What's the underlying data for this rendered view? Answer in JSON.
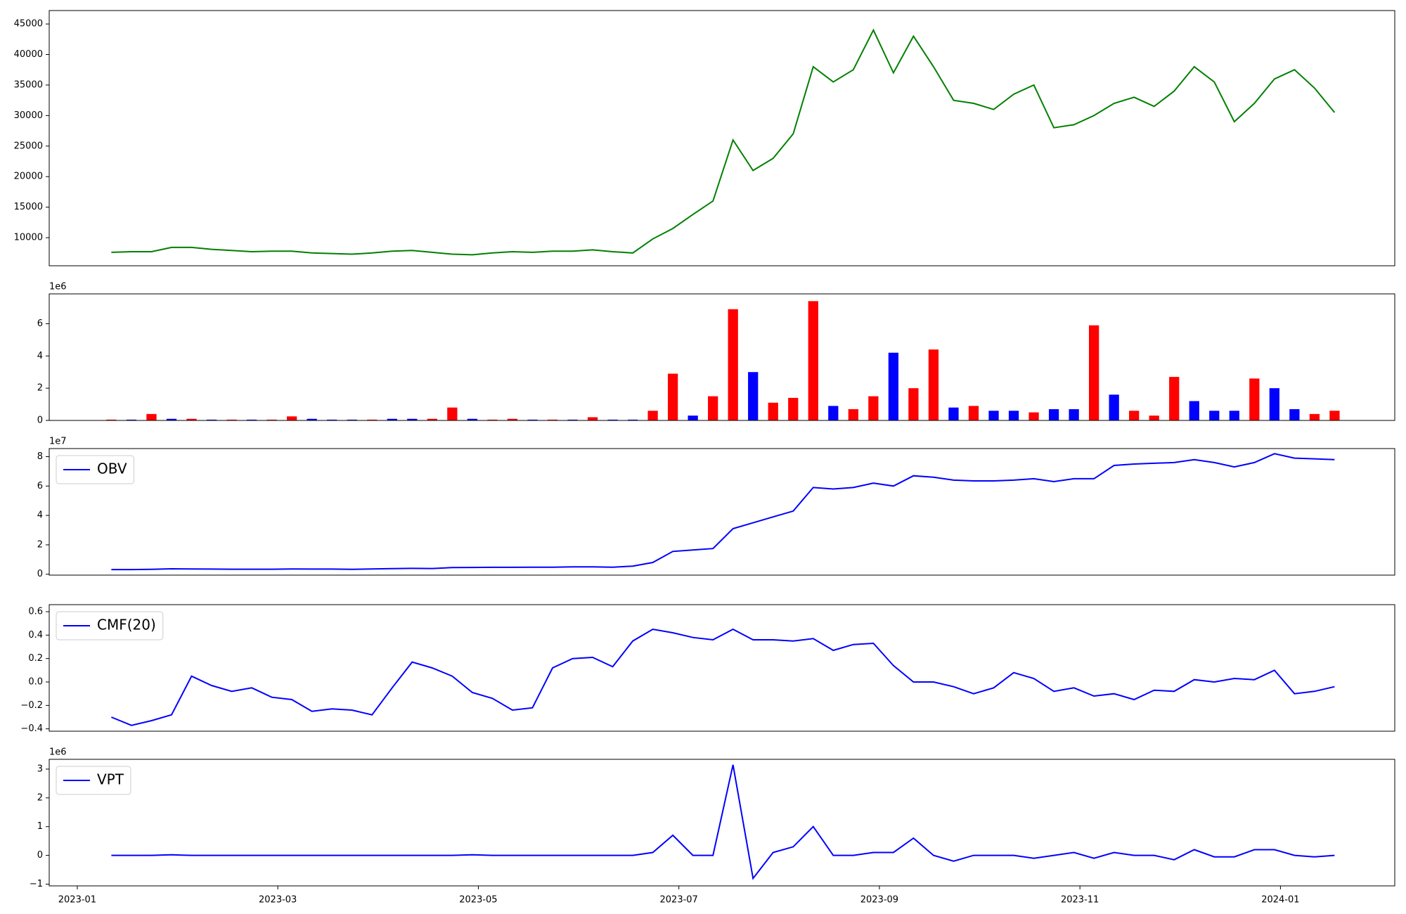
{
  "chart_data": [
    {
      "type": "line",
      "color": "green",
      "x": [
        0.34,
        0.54,
        0.74,
        0.94,
        1.14,
        1.34,
        1.54,
        1.74,
        1.94,
        2.14,
        2.34,
        2.54,
        2.74,
        2.94,
        3.14,
        3.34,
        3.54,
        3.74,
        3.94,
        4.14,
        4.34,
        4.54,
        4.74,
        4.94,
        5.14,
        5.34,
        5.54,
        5.74,
        5.94,
        6.14,
        6.34,
        6.54,
        6.74,
        6.94,
        7.14,
        7.34,
        7.54,
        7.74,
        7.94,
        8.14,
        8.34,
        8.54,
        8.74,
        8.94,
        9.14,
        9.34,
        9.54,
        9.74,
        9.94,
        10.14,
        10.34,
        10.54,
        10.74,
        10.94,
        11.14,
        11.34,
        11.54,
        11.74,
        11.94,
        12.14,
        12.34,
        12.54
      ],
      "values": [
        7600,
        7700,
        7700,
        8400,
        8400,
        8100,
        7900,
        7700,
        7800,
        7800,
        7500,
        7400,
        7300,
        7500,
        7800,
        7900,
        7600,
        7300,
        7200,
        7500,
        7700,
        7600,
        7800,
        7800,
        8000,
        7700,
        7500,
        9800,
        11500,
        13800,
        16000,
        26000,
        21000,
        23000,
        27000,
        38000,
        35500,
        37500,
        44000,
        37000,
        43000,
        38000,
        32500,
        32000,
        31000,
        33500,
        35000,
        28000,
        28500,
        30000,
        32000,
        33000,
        31500,
        34000,
        38000,
        35500,
        29000,
        32000,
        36000,
        37500,
        34500,
        30500
      ],
      "xlim": [
        -0.28,
        13.14
      ],
      "ylim": [
        5400,
        47200
      ],
      "yticks": [
        10000,
        15000,
        20000,
        25000,
        30000,
        35000,
        40000,
        45000
      ]
    },
    {
      "type": "bar",
      "offset_label": "1e6",
      "x": [
        0.34,
        0.54,
        0.74,
        0.94,
        1.14,
        1.34,
        1.54,
        1.74,
        1.94,
        2.14,
        2.34,
        2.54,
        2.74,
        2.94,
        3.14,
        3.34,
        3.54,
        3.74,
        3.94,
        4.14,
        4.34,
        4.54,
        4.74,
        4.94,
        5.14,
        5.34,
        5.54,
        5.74,
        5.94,
        6.14,
        6.34,
        6.54,
        6.74,
        6.94,
        7.14,
        7.34,
        7.54,
        7.74,
        7.94,
        8.14,
        8.34,
        8.54,
        8.74,
        8.94,
        9.14,
        9.34,
        9.54,
        9.74,
        9.94,
        10.14,
        10.34,
        10.54,
        10.74,
        10.94,
        11.14,
        11.34,
        11.54,
        11.74,
        11.94,
        12.14,
        12.34,
        12.54
      ],
      "values": [
        50000,
        50000,
        400000,
        100000,
        100000,
        50000,
        50000,
        50000,
        50000,
        250000,
        100000,
        50000,
        50000,
        50000,
        100000,
        100000,
        100000,
        800000,
        100000,
        50000,
        100000,
        50000,
        50000,
        50000,
        200000,
        50000,
        50000,
        600000,
        2900000,
        300000,
        1500000,
        6900000,
        3000000,
        1100000,
        1400000,
        7400000,
        900000,
        700000,
        1500000,
        4200000,
        2000000,
        4400000,
        800000,
        900000,
        600000,
        600000,
        500000,
        700000,
        700000,
        5900000,
        1600000,
        600000,
        300000,
        2700000,
        1200000,
        600000,
        600000,
        2600000,
        2000000,
        700000,
        400000,
        600000
      ],
      "colors": [
        "red",
        "blue",
        "red",
        "blue",
        "red",
        "blue",
        "red",
        "blue",
        "red",
        "red",
        "blue",
        "blue",
        "blue",
        "red",
        "blue",
        "blue",
        "red",
        "red",
        "blue",
        "red",
        "red",
        "blue",
        "red",
        "blue",
        "red",
        "blue",
        "blue",
        "red",
        "red",
        "blue",
        "red",
        "red",
        "blue",
        "red",
        "red",
        "red",
        "blue",
        "red",
        "red",
        "blue",
        "red",
        "red",
        "blue",
        "red",
        "blue",
        "blue",
        "red",
        "blue",
        "blue",
        "red",
        "blue",
        "red",
        "red",
        "red",
        "blue",
        "blue",
        "blue",
        "red",
        "blue",
        "blue",
        "red",
        "red"
      ],
      "xlim": [
        -0.28,
        13.14
      ],
      "ylim": [
        0,
        7850000
      ],
      "yticks": [
        0,
        {
          "value": 2000000,
          "label": "2"
        },
        {
          "value": 4000000,
          "label": "4"
        },
        {
          "value": 6000000,
          "label": "6"
        }
      ]
    },
    {
      "type": "line",
      "offset_label": "1e7",
      "legend": "upper left",
      "x": [
        0.34,
        0.54,
        0.74,
        0.94,
        1.14,
        1.34,
        1.54,
        1.74,
        1.94,
        2.14,
        2.34,
        2.54,
        2.74,
        2.94,
        3.14,
        3.34,
        3.54,
        3.74,
        3.94,
        4.14,
        4.34,
        4.54,
        4.74,
        4.94,
        5.14,
        5.34,
        5.54,
        5.74,
        5.94,
        6.14,
        6.34,
        6.54,
        6.74,
        6.94,
        7.14,
        7.34,
        7.54,
        7.74,
        7.94,
        8.14,
        8.34,
        8.54,
        8.74,
        8.94,
        9.14,
        9.34,
        9.54,
        9.74,
        9.94,
        10.14,
        10.34,
        10.54,
        10.74,
        10.94,
        11.14,
        11.34,
        11.54,
        11.74,
        11.94,
        12.14,
        12.34,
        12.54
      ],
      "series": [
        {
          "name": "OBV",
          "color": "blue",
          "values": [
            3200000,
            3200000,
            3300000,
            3700000,
            3600000,
            3500000,
            3400000,
            3400000,
            3400000,
            3600000,
            3500000,
            3500000,
            3300000,
            3600000,
            3800000,
            4000000,
            3900000,
            4500000,
            4600000,
            4700000,
            4700000,
            4800000,
            4800000,
            5000000,
            5000000,
            4800000,
            5500000,
            8000000,
            15500000,
            16500000,
            17500000,
            31000000,
            35000000,
            39000000,
            43000000,
            59000000,
            58000000,
            59000000,
            62000000,
            60000000,
            67000000,
            66000000,
            64000000,
            63500000,
            63500000,
            64000000,
            65000000,
            63000000,
            65000000,
            65000000,
            74000000,
            75000000,
            75500000,
            76000000,
            78000000,
            76000000,
            73000000,
            76000000,
            82000000,
            79000000,
            78500000,
            78000000
          ]
        }
      ],
      "xlim": [
        -0.28,
        13.14
      ],
      "ylim": [
        -600000,
        85500000
      ],
      "yticks": [
        0,
        {
          "value": 20000000,
          "label": "2"
        },
        {
          "value": 40000000,
          "label": "4"
        },
        {
          "value": 60000000,
          "label": "6"
        },
        {
          "value": 80000000,
          "label": "8"
        }
      ]
    },
    {
      "type": "line",
      "legend": "upper left",
      "x": [
        0.34,
        0.54,
        0.74,
        0.94,
        1.14,
        1.34,
        1.54,
        1.74,
        1.94,
        2.14,
        2.34,
        2.54,
        2.74,
        2.94,
        3.14,
        3.34,
        3.54,
        3.74,
        3.94,
        4.14,
        4.34,
        4.54,
        4.74,
        4.94,
        5.14,
        5.34,
        5.54,
        5.74,
        5.94,
        6.14,
        6.34,
        6.54,
        6.74,
        6.94,
        7.14,
        7.34,
        7.54,
        7.74,
        7.94,
        8.14,
        8.34,
        8.54,
        8.74,
        8.94,
        9.14,
        9.34,
        9.54,
        9.74,
        9.94,
        10.14,
        10.34,
        10.54,
        10.74,
        10.94,
        11.14,
        11.34,
        11.54,
        11.74,
        11.94,
        12.14,
        12.34,
        12.54
      ],
      "series": [
        {
          "name": "CMF(20)",
          "color": "blue",
          "values": [
            -0.3,
            -0.37,
            -0.33,
            -0.28,
            0.05,
            -0.03,
            -0.08,
            -0.05,
            -0.13,
            -0.15,
            -0.25,
            -0.23,
            -0.24,
            -0.28,
            -0.05,
            0.17,
            0.12,
            0.05,
            -0.09,
            -0.14,
            -0.24,
            -0.22,
            0.12,
            0.2,
            0.21,
            0.13,
            0.35,
            0.45,
            0.42,
            0.38,
            0.36,
            0.45,
            0.36,
            0.36,
            0.35,
            0.37,
            0.27,
            0.32,
            0.33,
            0.14,
            0.0,
            0.0,
            -0.04,
            -0.1,
            -0.05,
            0.08,
            0.03,
            -0.08,
            -0.05,
            -0.12,
            -0.1,
            -0.15,
            -0.07,
            -0.08,
            0.02,
            0.0,
            0.03,
            0.02,
            0.1,
            -0.1,
            -0.08,
            -0.04
          ]
        }
      ],
      "xlim": [
        -0.28,
        13.14
      ],
      "ylim": [
        -0.42,
        0.66
      ],
      "yticks": [
        {
          "value": -0.4,
          "label": "−0.4"
        },
        {
          "value": -0.2,
          "label": "−0.2"
        },
        {
          "value": 0,
          "label": "0.0"
        },
        0.2,
        0.4,
        0.6
      ]
    },
    {
      "type": "line",
      "offset_label": "1e6",
      "legend": "upper left",
      "x": [
        0.34,
        0.54,
        0.74,
        0.94,
        1.14,
        1.34,
        1.54,
        1.74,
        1.94,
        2.14,
        2.34,
        2.54,
        2.74,
        2.94,
        3.14,
        3.34,
        3.54,
        3.74,
        3.94,
        4.14,
        4.34,
        4.54,
        4.74,
        4.94,
        5.14,
        5.34,
        5.54,
        5.74,
        5.94,
        6.14,
        6.34,
        6.54,
        6.74,
        6.94,
        7.14,
        7.34,
        7.54,
        7.74,
        7.94,
        8.14,
        8.34,
        8.54,
        8.74,
        8.94,
        9.14,
        9.34,
        9.54,
        9.74,
        9.94,
        10.14,
        10.34,
        10.54,
        10.74,
        10.94,
        11.14,
        11.34,
        11.54,
        11.74,
        11.94,
        12.14,
        12.34,
        12.54
      ],
      "series": [
        {
          "name": "VPT",
          "color": "blue",
          "values": [
            0,
            0,
            0,
            20000,
            0,
            0,
            0,
            0,
            0,
            0,
            0,
            0,
            0,
            0,
            0,
            0,
            0,
            0,
            20000,
            0,
            0,
            0,
            0,
            0,
            0,
            0,
            0,
            100000,
            700000,
            0,
            0,
            3150000,
            -800000,
            100000,
            300000,
            1000000,
            0,
            0,
            100000,
            100000,
            600000,
            0,
            -200000,
            0,
            0,
            0,
            -100000,
            0,
            100000,
            -100000,
            100000,
            0,
            0,
            -150000,
            200000,
            -50000,
            -50000,
            200000,
            200000,
            0,
            -50000,
            0
          ]
        }
      ],
      "xlim": [
        -0.28,
        13.14
      ],
      "ylim": [
        -1060000,
        3340000
      ],
      "yticks": [
        {
          "value": -1000000,
          "label": "−1"
        },
        0,
        {
          "value": 1000000,
          "label": "1"
        },
        {
          "value": 2000000,
          "label": "2"
        },
        {
          "value": 3000000,
          "label": "3"
        }
      ],
      "xticks": [
        {
          "value": 0,
          "label": "2023-01"
        },
        {
          "value": 2,
          "label": "2023-03"
        },
        {
          "value": 4,
          "label": "2023-05"
        },
        {
          "value": 6,
          "label": "2023-07"
        },
        {
          "value": 8,
          "label": "2023-09"
        },
        {
          "value": 10,
          "label": "2023-11"
        },
        {
          "value": 12,
          "label": "2024-01"
        }
      ]
    }
  ]
}
